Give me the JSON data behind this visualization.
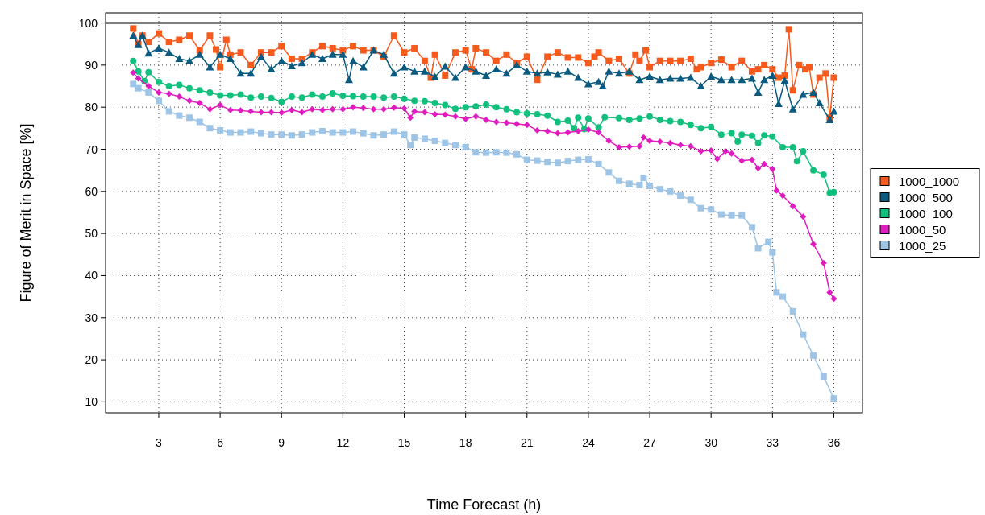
{
  "chart_data": {
    "type": "line",
    "xlabel": "Time Forecast (h)",
    "ylabel": "Figure of Merit in Space [%]",
    "xlim": [
      0.4,
      37.4
    ],
    "ylim": [
      7.4,
      102.4
    ],
    "xticks": [
      3,
      6,
      9,
      12,
      15,
      18,
      21,
      24,
      27,
      30,
      33,
      36
    ],
    "yticks": [
      10,
      20,
      30,
      40,
      50,
      60,
      70,
      80,
      90,
      100
    ],
    "grid": true,
    "legend": "right",
    "line_style": "solid",
    "ref_lines": [
      {
        "axis": "y",
        "value": 100,
        "color": "#000000"
      }
    ],
    "series": [
      {
        "name": "1000_1000",
        "color": "#f65a1d",
        "marker": "square",
        "x": [
          1.75,
          2,
          2.2,
          2.5,
          3,
          3.5,
          4,
          4.5,
          5,
          5.5,
          5.8,
          6,
          6.3,
          6.5,
          7,
          7.5,
          8,
          8.5,
          9,
          9.5,
          10,
          10.5,
          11,
          11.5,
          12,
          12.5,
          13,
          13.5,
          14,
          14.5,
          15,
          15.5,
          16,
          16.3,
          16.5,
          17,
          17.5,
          18,
          18.3,
          18.5,
          19,
          19.5,
          20,
          20.5,
          21,
          21.5,
          22,
          22.5,
          23,
          23.5,
          24,
          24.3,
          24.5,
          25,
          25.5,
          26,
          26.3,
          26.5,
          26.8,
          27,
          27.5,
          28,
          28.5,
          29,
          29.3,
          29.5,
          30,
          30.5,
          31,
          31.5,
          32,
          32.3,
          32.6,
          33,
          33.3,
          33.6,
          33.8,
          34,
          34.3,
          34.6,
          34.8,
          35,
          35.3,
          35.6,
          35.8,
          36
        ],
        "values": [
          98.7,
          95,
          97,
          95.5,
          97.5,
          95.5,
          96,
          97,
          93.5,
          97,
          93.7,
          89.5,
          96,
          92.5,
          93,
          90,
          93,
          93,
          94.5,
          91.5,
          91.5,
          93,
          94.5,
          94,
          93.5,
          94.5,
          93.5,
          93.5,
          92,
          97,
          93,
          94,
          91,
          87,
          92.5,
          87.5,
          93,
          93.5,
          89,
          94,
          93,
          91,
          92.5,
          90.5,
          92,
          86.5,
          92,
          93,
          91.8,
          91.8,
          90.5,
          92,
          93,
          91,
          91.5,
          88,
          92.5,
          91,
          93.5,
          89.5,
          91,
          91,
          91,
          91.5,
          89,
          89.5,
          90.5,
          91.3,
          89.5,
          91,
          88.5,
          89,
          90,
          89,
          87,
          87.5,
          98.5,
          84,
          90,
          89,
          89.5,
          83,
          87,
          88,
          77.5,
          87
        ]
      },
      {
        "name": "1000_500",
        "color": "#0a5a80",
        "marker": "triangle",
        "x": [
          1.75,
          2,
          2.2,
          2.5,
          3,
          3.5,
          4,
          4.5,
          5,
          5.5,
          6,
          6.5,
          7,
          7.5,
          8,
          8.5,
          9,
          9.5,
          10,
          10.5,
          11,
          11.5,
          12,
          12.3,
          12.5,
          13,
          13.5,
          14,
          14.5,
          15,
          15.5,
          16,
          16.5,
          17,
          17.5,
          18,
          18.5,
          19,
          19.5,
          20,
          20.5,
          21,
          21.5,
          22,
          22.5,
          23,
          23.5,
          24,
          24.5,
          24.7,
          25,
          25.5,
          26,
          26.5,
          27,
          27.5,
          28,
          28.5,
          29,
          29.5,
          30,
          30.5,
          31,
          31.5,
          32,
          32.3,
          32.6,
          33,
          33.3,
          33.6,
          34,
          34.5,
          35,
          35.3,
          35.8,
          36
        ],
        "values": [
          97,
          94.8,
          97,
          92.8,
          94,
          93,
          91.5,
          91,
          92.5,
          89.5,
          92.5,
          91.5,
          88,
          88,
          92,
          89,
          91,
          89.8,
          90.5,
          92.5,
          91.5,
          92.5,
          92.5,
          86.5,
          91,
          89.5,
          93.5,
          92.5,
          88,
          89.5,
          88.5,
          88.5,
          87.2,
          89.7,
          87,
          89.5,
          88.5,
          87.5,
          89,
          88,
          90,
          88.5,
          88,
          88.3,
          87.8,
          88.5,
          87,
          85.5,
          86,
          85,
          88.5,
          88,
          88.5,
          86.5,
          87.3,
          86.5,
          86.8,
          86.8,
          87,
          85,
          87.3,
          86.5,
          86.5,
          86.5,
          86.8,
          83.5,
          86.5,
          87.5,
          80.8,
          86.3,
          79.5,
          83,
          83.5,
          81,
          77,
          79
        ]
      },
      {
        "name": "1000_100",
        "color": "#12c07e",
        "marker": "circle",
        "x": [
          1.75,
          2,
          2.3,
          2.5,
          3,
          3.5,
          4,
          4.5,
          5,
          5.5,
          6,
          6.5,
          7,
          7.5,
          8,
          8.5,
          9,
          9.5,
          10,
          10.5,
          11,
          11.5,
          12,
          12.5,
          13,
          13.5,
          14,
          14.5,
          15,
          15.5,
          16,
          16.5,
          17,
          17.5,
          18,
          18.5,
          19,
          19.5,
          20,
          20.5,
          21,
          21.5,
          22,
          22.5,
          23,
          23.3,
          23.5,
          23.8,
          24,
          24.5,
          24.8,
          25.5,
          26,
          26.5,
          27,
          27.5,
          28,
          28.5,
          29,
          29.5,
          30,
          30.5,
          31,
          31.3,
          31.5,
          32,
          32.3,
          32.6,
          33,
          33.5,
          34,
          34.2,
          34.5,
          35,
          35.5,
          35.8,
          36
        ],
        "values": [
          91,
          88.5,
          86.2,
          88.3,
          86,
          85,
          85.3,
          84.5,
          84,
          83.5,
          82.8,
          82.8,
          83,
          82.3,
          82.5,
          82.2,
          81.3,
          82.5,
          82.3,
          83,
          82.5,
          83.3,
          82.7,
          82.6,
          82.5,
          82.5,
          82.3,
          82.5,
          82,
          81.5,
          81.4,
          81,
          80.5,
          79.6,
          80,
          80.2,
          80.6,
          80,
          79.5,
          78.8,
          78.5,
          78.3,
          78,
          76.5,
          76.8,
          75,
          77.5,
          74.8,
          77.3,
          75.2,
          77.6,
          77.4,
          77,
          77.3,
          77.8,
          77,
          76.7,
          76.5,
          75.8,
          75,
          75.3,
          73.5,
          73.8,
          71.8,
          73.5,
          73.2,
          71.5,
          73.3,
          73,
          70.5,
          70.5,
          67.2,
          69.5,
          65,
          64,
          59.7,
          59.8
        ]
      },
      {
        "name": "1000_50",
        "color": "#e01cc0",
        "marker": "diamond",
        "x": [
          1.75,
          2,
          2.5,
          3,
          3.5,
          4,
          4.5,
          5,
          5.5,
          6,
          6.5,
          7,
          7.5,
          8,
          8.5,
          9,
          9.5,
          10,
          10.5,
          11,
          11.5,
          12,
          12.5,
          13,
          13.5,
          14,
          14.5,
          15,
          15.3,
          15.5,
          16,
          16.5,
          17,
          17.5,
          18,
          18.5,
          19,
          19.5,
          20,
          20.5,
          21,
          21.5,
          22,
          22.5,
          23,
          23.5,
          24,
          24.5,
          25,
          25.5,
          26,
          26.5,
          26.7,
          27,
          27.5,
          28,
          28.5,
          29,
          29.5,
          30,
          30.3,
          30.7,
          31,
          31.5,
          32,
          32.3,
          32.6,
          33,
          33.2,
          33.5,
          34,
          34.5,
          35,
          35.5,
          35.8,
          36
        ],
        "values": [
          88.2,
          86.8,
          85,
          83.5,
          83.2,
          82.5,
          81.5,
          81,
          79.5,
          80.5,
          79.3,
          79.2,
          79,
          78.8,
          78.8,
          78.7,
          79.3,
          78.8,
          79.5,
          79.3,
          79.5,
          79.5,
          80,
          79.8,
          79.5,
          79.5,
          79.9,
          79.7,
          77.5,
          79,
          78.8,
          78.3,
          78.2,
          77.8,
          77.2,
          77.8,
          77,
          76.5,
          76.3,
          76,
          75.8,
          74.5,
          74.3,
          73.8,
          74,
          74.3,
          74.7,
          74,
          72,
          70.5,
          70.6,
          70.7,
          72.8,
          72,
          71.8,
          71.5,
          71,
          70.7,
          69.5,
          69.7,
          67.7,
          69.5,
          69,
          67.3,
          67.5,
          65.5,
          66.5,
          65.3,
          60.2,
          59,
          56.5,
          54,
          47.5,
          43,
          36,
          34.5
        ]
      },
      {
        "name": "1000_25",
        "color": "#9ec4e6",
        "marker": "square",
        "x": [
          1.75,
          2,
          2.5,
          3,
          3.5,
          4,
          4.5,
          5,
          5.5,
          6,
          6.5,
          7,
          7.5,
          8,
          8.5,
          9,
          9.5,
          10,
          10.5,
          11,
          11.5,
          12,
          12.5,
          13,
          13.5,
          14,
          14.5,
          15,
          15.3,
          15.5,
          16,
          16.5,
          17,
          17.5,
          18,
          18.5,
          19,
          19.5,
          20,
          20.5,
          21,
          21.5,
          22,
          22.5,
          23,
          23.5,
          24,
          24.5,
          25,
          25.5,
          26,
          26.5,
          26.7,
          27,
          27.5,
          28,
          28.5,
          29,
          29.5,
          30,
          30.5,
          31,
          31.5,
          32,
          32.3,
          32.8,
          33,
          33.2,
          33.5,
          34,
          34.5,
          35,
          35.5,
          36
        ],
        "values": [
          85.5,
          84.5,
          83.5,
          81.5,
          79,
          78,
          77.5,
          76.5,
          75,
          74.5,
          74,
          74,
          74.2,
          73.8,
          73.5,
          73.5,
          73.3,
          73.5,
          74,
          74.3,
          74,
          74,
          74.2,
          73.8,
          73.3,
          73.5,
          74.2,
          73.5,
          71,
          72.8,
          72.5,
          72,
          71.5,
          71,
          70.5,
          69.3,
          69.2,
          69.3,
          69.2,
          68.8,
          67.5,
          67.3,
          67,
          66.8,
          67.2,
          67.5,
          67.6,
          66.5,
          64.5,
          62.5,
          61.8,
          61.5,
          63.2,
          61.3,
          60.5,
          60,
          59,
          58,
          56,
          55.7,
          54.5,
          54.3,
          54.3,
          51.5,
          46.5,
          48,
          45.5,
          36,
          35,
          31.5,
          26,
          21,
          16,
          10.8
        ]
      }
    ]
  }
}
